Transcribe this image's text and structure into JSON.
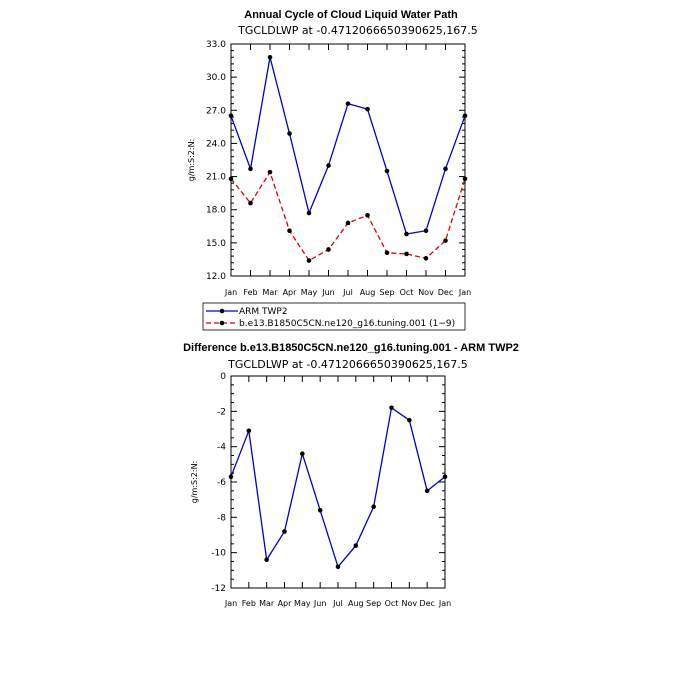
{
  "chart_data": [
    {
      "type": "line",
      "title": "Annual Cycle of Cloud Liquid Water Path",
      "subtitle": "TGCLDLWP at -0.4712066650390625,167.5",
      "ylabel": "g/m:S:2:N:",
      "categories": [
        "Jan",
        "Feb",
        "Mar",
        "Apr",
        "May",
        "Jun",
        "Jul",
        "Aug",
        "Sep",
        "Oct",
        "Nov",
        "Dec",
        "Jan"
      ],
      "ylim": [
        12.0,
        33.0
      ],
      "yticks": [
        "12.0",
        "15.0",
        "18.0",
        "21.0",
        "24.0",
        "27.0",
        "30.0",
        "33.0"
      ],
      "series": [
        {
          "name": "ARM TWP2",
          "color": "#0000cc",
          "dash": "solid",
          "values": [
            26.5,
            21.7,
            31.8,
            24.9,
            17.7,
            22.0,
            27.6,
            27.1,
            21.5,
            15.8,
            16.1,
            21.7,
            26.5
          ]
        },
        {
          "name": "b.e13.B1850C5CN.ne120_g16.tuning.001 (1−9)",
          "color": "#dd0000",
          "dash": "dashed",
          "values": [
            20.8,
            18.6,
            21.4,
            16.1,
            13.4,
            14.4,
            16.8,
            17.5,
            14.1,
            14.0,
            13.6,
            15.2,
            20.8
          ]
        }
      ],
      "legend_position": "bottom"
    },
    {
      "type": "line",
      "title": "Difference b.e13.B1850C5CN.ne120_g16.tuning.001 - ARM TWP2",
      "subtitle": "TGCLDLWP at -0.4712066650390625,167.5",
      "ylabel": "g/m:S:2:N:",
      "categories": [
        "Jan",
        "Feb",
        "Mar",
        "Apr",
        "May",
        "Jun",
        "Jul",
        "Aug",
        "Sep",
        "Oct",
        "Nov",
        "Dec",
        "Jan"
      ],
      "ylim": [
        -12,
        0
      ],
      "yticks": [
        "-12",
        "-10",
        "-8",
        "-6",
        "-4",
        "-2",
        "0"
      ],
      "series": [
        {
          "color": "#0000cc",
          "dash": "solid",
          "values": [
            -5.7,
            -3.1,
            -10.4,
            -8.8,
            -4.4,
            -7.6,
            -10.8,
            -9.6,
            -7.4,
            -1.8,
            -2.5,
            -6.5,
            -5.7
          ]
        }
      ]
    }
  ]
}
